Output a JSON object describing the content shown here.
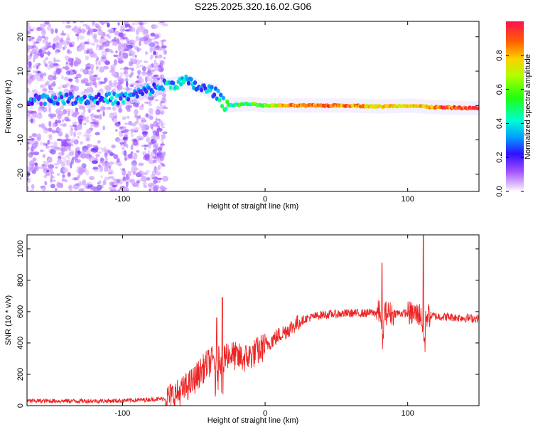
{
  "title": "S225.2025.320.16.02.G06",
  "colors": {
    "snr_line": "#ee2222",
    "frame": "#000000",
    "background": "#ffffff"
  },
  "chart_data": [
    {
      "type": "heatmap",
      "name": "spectrogram",
      "xlabel": "Height of straight line (km)",
      "ylabel": "Frequency (Hz)",
      "xlim": [
        -167,
        150
      ],
      "ylim": [
        -25,
        24.5
      ],
      "xticks": [
        -100,
        0,
        100
      ],
      "yticks": [
        -20,
        -10,
        0,
        10,
        20
      ],
      "colorbar": {
        "label": "Normalized spectral amplitude",
        "range": [
          0,
          1
        ],
        "ticks": [
          "0.0",
          "0.2",
          "0.4",
          "0.6",
          "0.8"
        ],
        "tick_values": [
          0,
          0.2,
          0.4,
          0.6,
          0.8
        ]
      },
      "ridge": {
        "x": [
          -160,
          -140,
          -120,
          -100,
          -85,
          -70,
          -55,
          -45,
          -35,
          -28,
          -20,
          -10,
          0,
          20,
          40,
          60,
          80,
          100,
          120,
          150
        ],
        "frequency": [
          2,
          2,
          2,
          2,
          4,
          6,
          7,
          5,
          4,
          0,
          0.3,
          0.5,
          0,
          0,
          0,
          0,
          -0.3,
          0,
          -0.5,
          -0.8
        ],
        "amplitude": [
          0.25,
          0.3,
          0.3,
          0.3,
          0.25,
          0.35,
          0.35,
          0.3,
          0.3,
          0.45,
          0.5,
          0.55,
          0.6,
          0.85,
          0.9,
          0.85,
          0.75,
          0.7,
          0.85,
          0.95
        ]
      },
      "noise_region_x": [
        -167,
        -70
      ]
    },
    {
      "type": "line",
      "name": "snr",
      "xlabel": "Height of straight line (km)",
      "ylabel": "SNR (10 * v/v)",
      "xlim": [
        -167,
        150
      ],
      "ylim": [
        0,
        1090
      ],
      "xticks": [
        -100,
        0,
        100
      ],
      "yticks": [
        0,
        200,
        400,
        600,
        800,
        1000
      ],
      "series": [
        {
          "name": "SNR",
          "x": [
            -167,
            -140,
            -110,
            -90,
            -70,
            -60,
            -50,
            -45,
            -40,
            -35,
            -30,
            -25,
            -20,
            -15,
            -10,
            -5,
            0,
            5,
            10,
            15,
            20,
            25,
            30,
            40,
            50,
            60,
            70,
            80,
            85,
            90,
            100,
            110,
            120,
            130,
            140,
            150
          ],
          "values": [
            30,
            30,
            30,
            35,
            45,
            80,
            160,
            220,
            270,
            300,
            320,
            330,
            310,
            300,
            320,
            350,
            380,
            420,
            450,
            480,
            510,
            540,
            560,
            580,
            585,
            590,
            590,
            595,
            590,
            590,
            590,
            580,
            570,
            565,
            560,
            555
          ]
        }
      ],
      "spikes": [
        {
          "x": -34,
          "value": 560
        },
        {
          "x": -30,
          "value": 690
        },
        {
          "x": 82,
          "value": 910
        },
        {
          "x": 111,
          "value": 1090
        }
      ]
    }
  ]
}
